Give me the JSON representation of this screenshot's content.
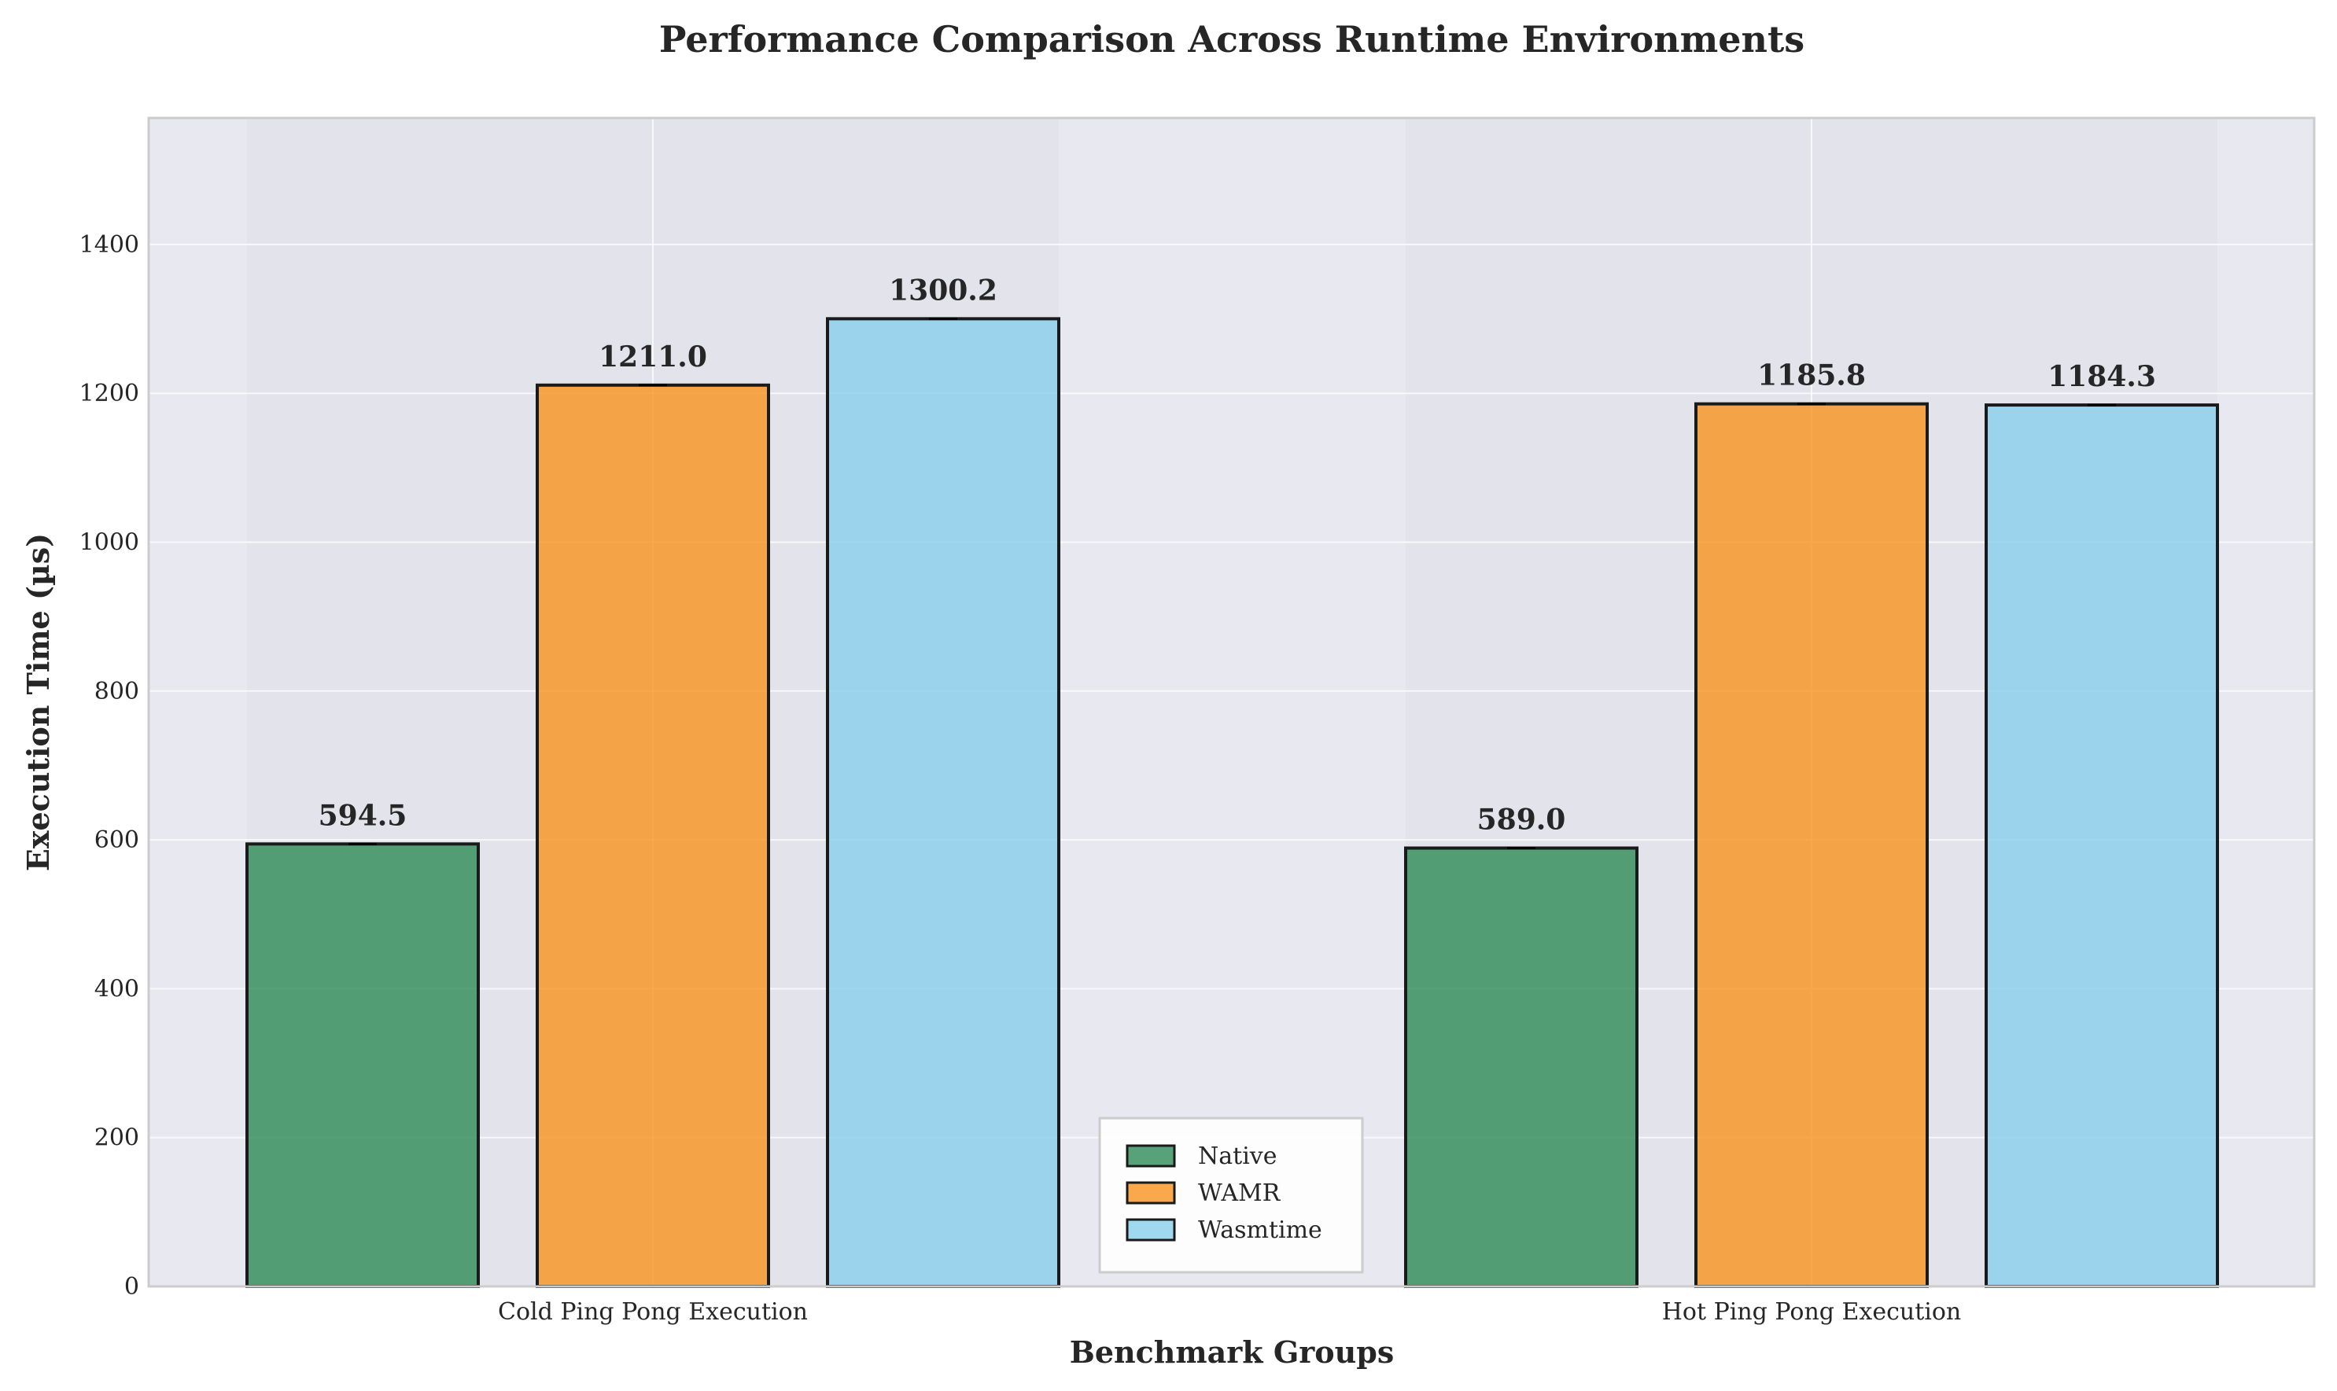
{
  "chart_data": {
    "type": "bar",
    "title": "Performance Comparison Across Runtime Environments",
    "xlabel": "Benchmark Groups",
    "ylabel": "Execution Time (µs)",
    "categories": [
      "Cold Ping Pong Execution",
      "Hot Ping Pong Execution"
    ],
    "series": [
      {
        "name": "Native",
        "color": "#2e8b57",
        "values": [
          594.5,
          589.0
        ],
        "labels": [
          "594.5",
          "589.0"
        ]
      },
      {
        "name": "WAMR",
        "color": "#f7931e",
        "values": [
          1211.0,
          1185.8
        ],
        "labels": [
          "1211.0",
          "1185.8"
        ]
      },
      {
        "name": "Wasmtime",
        "color": "#87ceeb",
        "values": [
          1300.2,
          1184.3
        ],
        "labels": [
          "1300.2",
          "1184.3"
        ]
      }
    ],
    "ylim": [
      0,
      1570
    ],
    "yticks": [
      0,
      200,
      400,
      600,
      800,
      1000,
      1200,
      1400
    ],
    "grid": true,
    "legend_position": "bottom-center"
  }
}
